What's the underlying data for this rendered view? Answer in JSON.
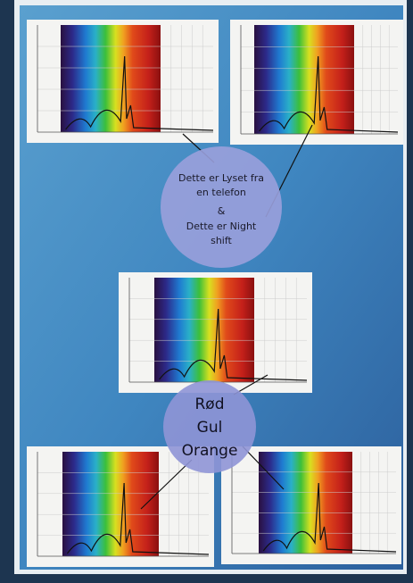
{
  "circles": [
    {
      "lines": [
        "Dette er Lyset fra",
        "en telefon",
        "&",
        "Dette er Night",
        "shift"
      ]
    },
    {
      "lines": [
        "Rød",
        "Gul",
        "Orange"
      ]
    }
  ]
}
